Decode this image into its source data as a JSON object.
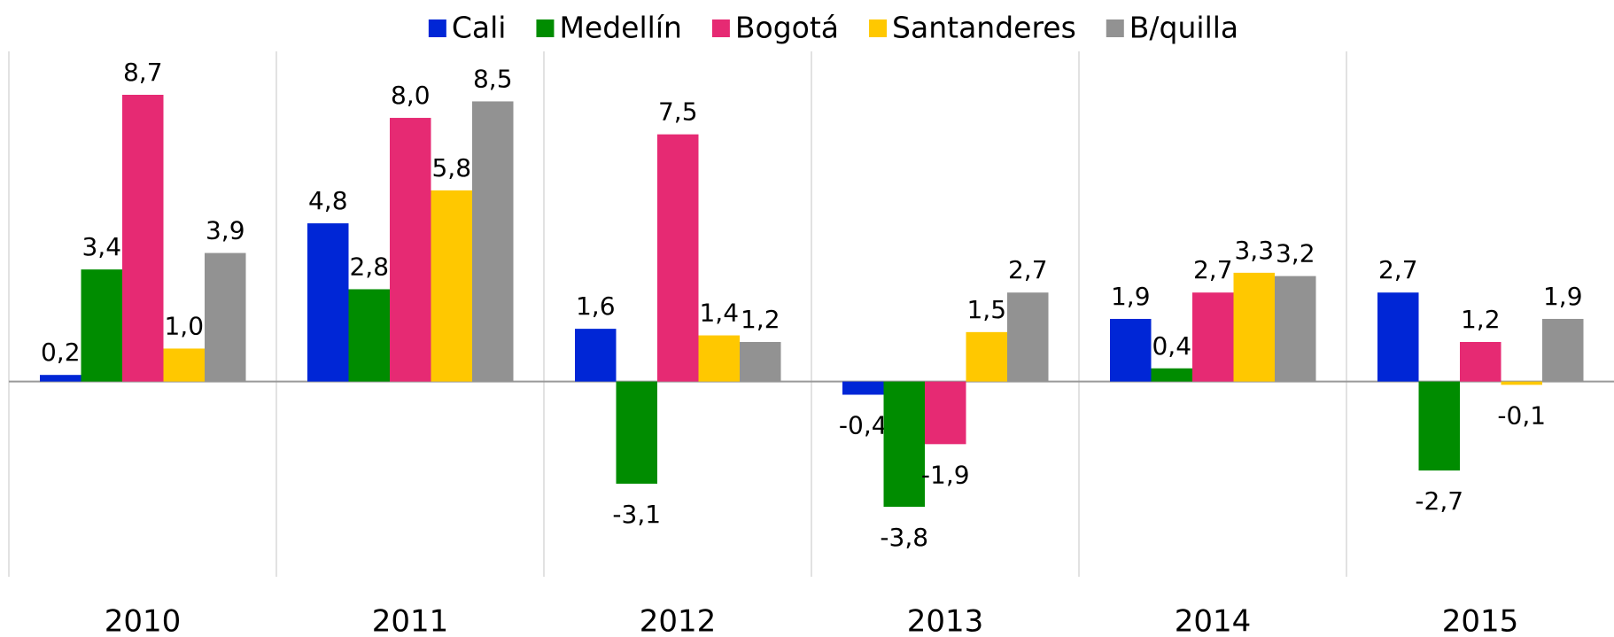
{
  "chart_data": {
    "type": "bar",
    "categories": [
      "2010",
      "2011",
      "2012",
      "2013",
      "2014",
      "2015"
    ],
    "series": [
      {
        "name": "Cali",
        "color": "#0026d6",
        "values": [
          0.2,
          4.8,
          1.6,
          -0.4,
          1.9,
          2.7
        ],
        "value_labels": [
          "0,2",
          "4,8",
          "1,6",
          "-0,4",
          "1,9",
          "2,7"
        ]
      },
      {
        "name": "Medellín",
        "color": "#008c00",
        "values": [
          3.4,
          2.8,
          -3.1,
          -3.8,
          0.4,
          -2.7
        ],
        "value_labels": [
          "3,4",
          "2,8",
          "-3,1",
          "-3,8",
          "0,4",
          "-2,7"
        ]
      },
      {
        "name": "Bogotá",
        "color": "#e62a73",
        "values": [
          8.7,
          8.0,
          7.5,
          -1.9,
          2.7,
          1.2
        ],
        "value_labels": [
          "8,7",
          "8,0",
          "7,5",
          "-1,9",
          "2,7",
          "1,2"
        ]
      },
      {
        "name": "Santanderes",
        "color": "#ffc800",
        "values": [
          1.0,
          5.8,
          1.4,
          1.5,
          3.3,
          -0.1
        ],
        "value_labels": [
          "1,0",
          "5,8",
          "1,4",
          "1,5",
          "3,3",
          "-0,1"
        ]
      },
      {
        "name": "B/quilla",
        "color": "#929292",
        "values": [
          3.9,
          8.5,
          1.2,
          2.7,
          3.2,
          1.9
        ],
        "value_labels": [
          "3,9",
          "8,5",
          "1,2",
          "2,7",
          "3,2",
          "1,9"
        ]
      }
    ],
    "legend": "top"
  }
}
